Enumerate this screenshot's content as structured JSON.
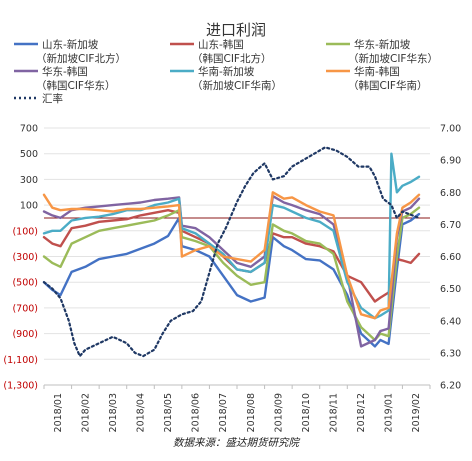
{
  "chart_data": {
    "type": "line",
    "title": "进口利润",
    "source": "数据来源：盛达期货研究院",
    "x_labels": [
      "2018/01",
      "2018/02",
      "2018/03",
      "2018/04",
      "2018/05",
      "2018/06",
      "2018/07",
      "2018/08",
      "2018/09",
      "2018/10",
      "2018/11",
      "2018/12",
      "2019/01",
      "2019/02"
    ],
    "x_unit": "month_index",
    "y_left": {
      "min": -1300,
      "max": 700,
      "step": 200,
      "tick_labels": [
        "(1,300)",
        "(1,100)",
        "(900)",
        "(700)",
        "(500)",
        "(300)",
        "(100)",
        "100",
        "300",
        "500",
        "700"
      ],
      "tick_values": [
        -1300,
        -1100,
        -900,
        -700,
        -500,
        -300,
        -100,
        100,
        300,
        500,
        700
      ],
      "negative_color": "#c00000"
    },
    "y_right": {
      "min": 6.2,
      "max": 7.0,
      "step": 0.1,
      "tick_labels": [
        "6.20",
        "6.30",
        "6.40",
        "6.50",
        "6.60",
        "6.70",
        "6.80",
        "6.90",
        "7.00"
      ]
    },
    "zero_line": {
      "value": 0,
      "color": "#8b1a1a"
    },
    "legend_rows": [
      [
        {
          "series": 0,
          "label": "山东-新加坡"
        },
        {
          "series": 1,
          "label": "山东-韩国"
        },
        {
          "series": 2,
          "label": "华东-新加坡"
        }
      ],
      [
        {
          "series": -1,
          "label": "（新加坡CIF北方）"
        },
        {
          "series": -1,
          "label": "（韩国CIF北方）"
        },
        {
          "series": -1,
          "label": "（新加坡CIF华东）"
        }
      ],
      [
        {
          "series": 3,
          "label": "华东-韩国"
        },
        {
          "series": 4,
          "label": "华南-新加坡"
        },
        {
          "series": 5,
          "label": "华南-韩国"
        }
      ],
      [
        {
          "series": -1,
          "label": "（韩国CIF华东）"
        },
        {
          "series": -1,
          "label": "（新加坡CIF华南）"
        },
        {
          "series": -1,
          "label": "（韩国CIF华南）"
        }
      ],
      [
        {
          "series": 6,
          "label": "汇率"
        }
      ]
    ],
    "series": [
      {
        "name": "山东-新加坡（新加坡CIF北方）",
        "color": "#4472c4",
        "axis": "left",
        "dash": "",
        "x": [
          0,
          0.3,
          0.6,
          1.0,
          1.5,
          2.0,
          2.5,
          3.0,
          3.5,
          4.0,
          4.5,
          4.9,
          5.0,
          5.5,
          6.0,
          6.5,
          7.0,
          7.5,
          8.0,
          8.3,
          8.7,
          9.0,
          9.5,
          10.0,
          10.5,
          11.0,
          11.5,
          12.0,
          12.2,
          12.5,
          12.8,
          13.0,
          13.3,
          13.6
        ],
        "y": [
          -500,
          -560,
          -600,
          -420,
          -380,
          -320,
          -300,
          -280,
          -240,
          -200,
          -140,
          0,
          -220,
          -250,
          -300,
          -450,
          -600,
          -650,
          -620,
          -150,
          -220,
          -250,
          -320,
          -330,
          -400,
          -600,
          -900,
          -1000,
          -950,
          -980,
          -400,
          -50,
          -20,
          30
        ]
      },
      {
        "name": "山东-韩国（韩国CIF北方）",
        "color": "#c0504d",
        "axis": "left",
        "dash": "",
        "x": [
          0,
          0.3,
          0.6,
          1.0,
          1.5,
          2.0,
          2.5,
          3.0,
          3.5,
          4.0,
          4.5,
          4.9,
          5.0,
          5.5,
          6.0,
          6.5,
          7.0,
          7.5,
          8.0,
          8.3,
          8.7,
          9.0,
          9.5,
          10.0,
          10.5,
          11.0,
          11.5,
          12.0,
          12.2,
          12.5,
          12.8,
          13.0,
          13.3,
          13.6
        ],
        "y": [
          -150,
          -200,
          -220,
          -80,
          -60,
          -30,
          -20,
          -10,
          20,
          40,
          60,
          40,
          -100,
          -150,
          -200,
          -300,
          -400,
          -420,
          -350,
          -120,
          -150,
          -150,
          -200,
          -220,
          -260,
          -450,
          -500,
          -650,
          -620,
          -580,
          -320,
          -330,
          -350,
          -280
        ]
      },
      {
        "name": "华东-新加坡（新加坡CIF华东）",
        "color": "#9bbb59",
        "axis": "left",
        "dash": "",
        "x": [
          0,
          0.3,
          0.6,
          1.0,
          1.5,
          2.0,
          2.5,
          3.0,
          3.5,
          4.0,
          4.5,
          4.9,
          5.0,
          5.5,
          6.0,
          6.5,
          7.0,
          7.5,
          8.0,
          8.3,
          8.7,
          9.0,
          9.5,
          10.0,
          10.5,
          11.0,
          11.5,
          12.0,
          12.2,
          12.5,
          12.8,
          13.0,
          13.3,
          13.6
        ],
        "y": [
          -300,
          -350,
          -380,
          -200,
          -150,
          -100,
          -80,
          -60,
          -40,
          -20,
          20,
          60,
          -150,
          -180,
          -220,
          -350,
          -450,
          -520,
          -500,
          -50,
          -100,
          -120,
          -180,
          -200,
          -280,
          -650,
          -850,
          -950,
          -900,
          -920,
          -300,
          0,
          30,
          80
        ]
      },
      {
        "name": "华东-韩国（韩国CIF华东）",
        "color": "#8064a2",
        "axis": "left",
        "dash": "",
        "x": [
          0,
          0.3,
          0.6,
          1.0,
          1.5,
          2.0,
          2.5,
          3.0,
          3.5,
          4.0,
          4.5,
          4.9,
          5.0,
          5.5,
          6.0,
          6.5,
          7.0,
          7.5,
          8.0,
          8.3,
          8.7,
          9.0,
          9.5,
          10.0,
          10.5,
          11.0,
          11.5,
          12.0,
          12.2,
          12.5,
          12.8,
          13.0,
          13.3,
          13.6
        ],
        "y": [
          50,
          20,
          0,
          60,
          80,
          90,
          100,
          110,
          120,
          140,
          150,
          160,
          -60,
          -80,
          -150,
          -250,
          -350,
          -380,
          -300,
          170,
          120,
          100,
          60,
          30,
          -50,
          -450,
          -1000,
          -950,
          -880,
          -860,
          -150,
          50,
          80,
          150
        ]
      },
      {
        "name": "华南-新加坡（新加坡CIF华南）",
        "color": "#4bacc6",
        "axis": "left",
        "dash": "",
        "x": [
          0,
          0.3,
          0.6,
          1.0,
          1.5,
          2.0,
          2.5,
          3.0,
          3.5,
          4.0,
          4.5,
          4.9,
          5.0,
          5.5,
          6.0,
          6.5,
          7.0,
          7.5,
          8.0,
          8.3,
          8.7,
          9.0,
          9.5,
          10.0,
          10.5,
          11.0,
          11.5,
          12.0,
          12.2,
          12.5,
          12.6,
          12.8,
          13.0,
          13.3,
          13.6
        ],
        "y": [
          -120,
          -100,
          -100,
          -20,
          0,
          10,
          30,
          60,
          60,
          100,
          120,
          150,
          -80,
          -120,
          -200,
          -280,
          -400,
          -420,
          -350,
          100,
          80,
          50,
          0,
          -30,
          -100,
          -500,
          -700,
          -780,
          -760,
          -720,
          500,
          200,
          250,
          280,
          320
        ]
      },
      {
        "name": "华南-韩国（韩国CIF华南）",
        "color": "#f79646",
        "axis": "left",
        "dash": "",
        "x": [
          0,
          0.3,
          0.6,
          1.0,
          1.5,
          2.0,
          2.5,
          3.0,
          3.5,
          4.0,
          4.5,
          4.9,
          5.0,
          5.5,
          6.0,
          6.5,
          7.0,
          7.5,
          8.0,
          8.3,
          8.7,
          9.0,
          9.5,
          10.0,
          10.5,
          11.0,
          11.5,
          12.0,
          12.2,
          12.5,
          12.8,
          13.0,
          13.3,
          13.6
        ],
        "y": [
          180,
          80,
          60,
          70,
          70,
          60,
          50,
          70,
          70,
          80,
          90,
          100,
          -300,
          -250,
          -220,
          -300,
          -320,
          -340,
          -250,
          200,
          150,
          160,
          100,
          50,
          20,
          -450,
          -750,
          -780,
          -720,
          -700,
          -120,
          80,
          120,
          180
        ]
      },
      {
        "name": "汇率",
        "color": "#1f3864",
        "axis": "right",
        "dash": "2,3",
        "x": [
          0,
          0.3,
          0.6,
          0.9,
          1.1,
          1.3,
          1.5,
          2.0,
          2.5,
          3.0,
          3.3,
          3.6,
          4.0,
          4.3,
          4.6,
          5.0,
          5.4,
          5.7,
          6.0,
          6.3,
          6.6,
          7.0,
          7.3,
          7.6,
          8.0,
          8.3,
          8.7,
          9.0,
          9.4,
          9.8,
          10.2,
          10.6,
          11.0,
          11.4,
          11.8,
          12.0,
          12.3,
          12.6,
          12.8,
          13.0,
          13.3,
          13.6
        ],
        "y": [
          6.52,
          6.5,
          6.47,
          6.4,
          6.33,
          6.29,
          6.31,
          6.33,
          6.35,
          6.33,
          6.3,
          6.29,
          6.31,
          6.36,
          6.4,
          6.42,
          6.43,
          6.46,
          6.55,
          6.64,
          6.69,
          6.77,
          6.82,
          6.86,
          6.89,
          6.84,
          6.85,
          6.88,
          6.9,
          6.92,
          6.94,
          6.93,
          6.91,
          6.88,
          6.88,
          6.85,
          6.78,
          6.76,
          6.72,
          6.74,
          6.73,
          6.72
        ]
      }
    ]
  }
}
